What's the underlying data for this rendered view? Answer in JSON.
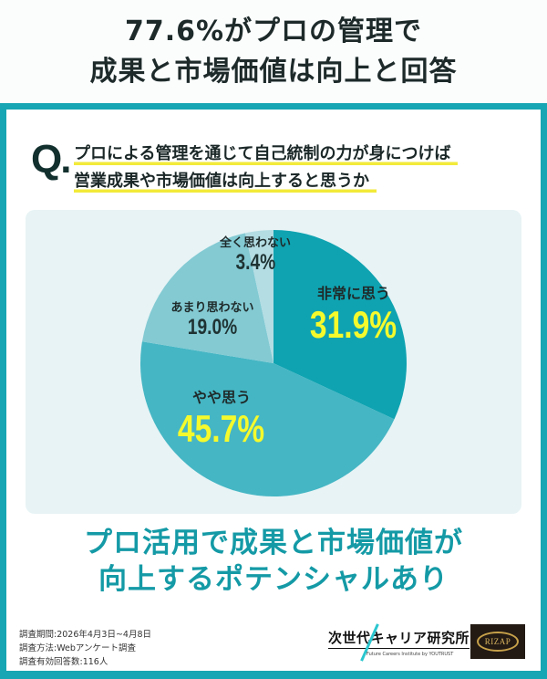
{
  "headline": {
    "line1": "77.6%がプロの管理で",
    "line2": "成果と市場価値は向上と回答"
  },
  "question": {
    "mark": "Q.",
    "line1": "プロによる管理を通じて自己統制の力が身につけば",
    "line2": "営業成果や市場価値は向上すると思うか"
  },
  "chart_data": {
    "type": "pie",
    "title": "プロによる管理を通じて自己統制の力が身につけば営業成果や市場価値は向上すると思うか",
    "categories": [
      "非常に思う",
      "やや思う",
      "あまり思わない",
      "全く思わない"
    ],
    "values": [
      31.9,
      45.7,
      19.0,
      3.4
    ],
    "labels": [
      "31.9%",
      "45.7%",
      "19.0%",
      "3.4%"
    ],
    "colors": [
      "#0fa3b1",
      "#45b6c4",
      "#83cad3",
      "#b3dde3"
    ],
    "start_angle_deg": 0,
    "direction": "clockwise",
    "legend": "none (labels on slices)"
  },
  "slices": [
    {
      "name": "非常に思う",
      "value": "31.9%"
    },
    {
      "name": "やや思う",
      "value": "45.7%"
    },
    {
      "name": "あまり思わない",
      "value": "19.0%"
    },
    {
      "name": "全く思わない",
      "value": "3.4%"
    }
  ],
  "conclusion": {
    "line1": "プロ活用で成果と市場価値が",
    "line2": "向上するポテンシャルあり"
  },
  "footer": {
    "period": "調査期間:2026年4月3日~4月8日",
    "method": "調査方法:Webアンケート調査",
    "respondents": "調査有効回答数:116人"
  },
  "logos": {
    "ncc_jp": "次世代キャリア研究所",
    "ncc_en": "Future Careers Institute by YOUTRUST",
    "rizap": "RIZAP"
  },
  "colors": {
    "frame": "#17a6b3",
    "accent_text": "#149aa6",
    "highlight": "#f2ea3a",
    "value_yellow": "#f5fa2c",
    "panel_bg": "#e7f3f5"
  }
}
